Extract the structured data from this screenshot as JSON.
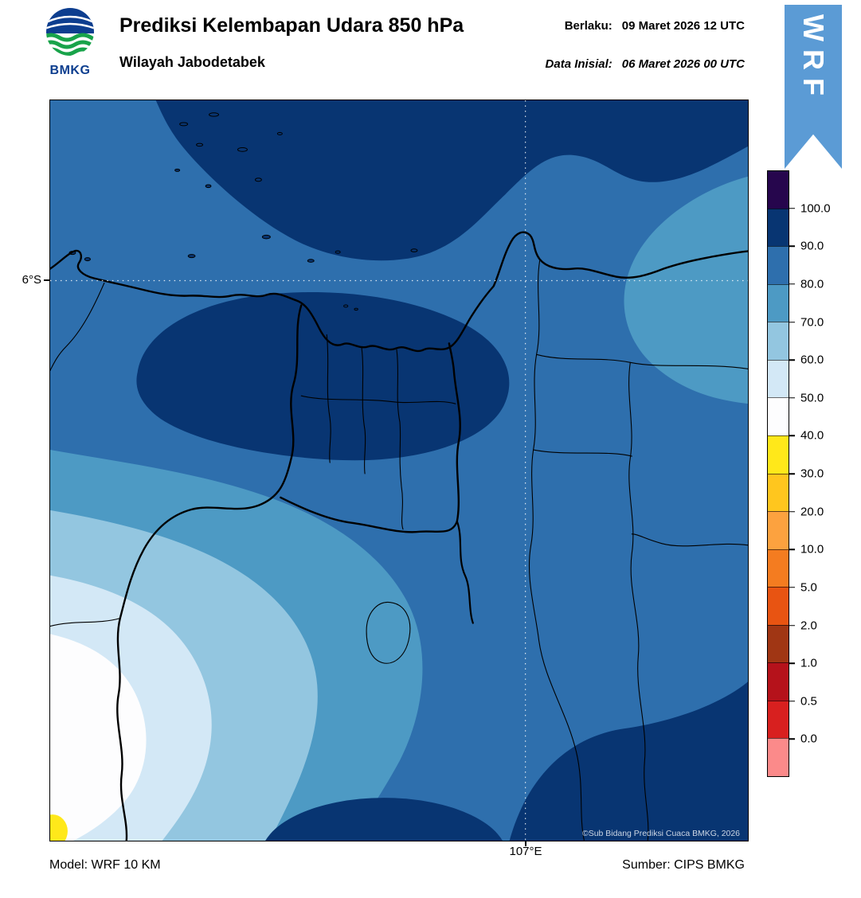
{
  "header": {
    "title": "Prediksi Kelembapan Udara 850 hPa",
    "subtitle": "Wilayah Jabodetabek",
    "valid_label": "Berlaku:",
    "valid_value": "09 Maret 2026 12 UTC",
    "initial_label": "Data Inisial:",
    "initial_value": "06 Maret 2026 00 UTC",
    "logo_text": "BMKG",
    "ribbon_label": "WRF",
    "ribbon_color": "#5b9bd5"
  },
  "map": {
    "lat_tick": "6°S",
    "lon_tick": "107°E",
    "copyright": "©Sub Bidang Prediksi Cuaca BMKG, 2026"
  },
  "footer": {
    "model": "Model: WRF 10 KM",
    "source": "Sumber: CIPS BMKG"
  },
  "colorbar": {
    "ticks": [
      "100.0",
      "90.0",
      "80.0",
      "70.0",
      "60.0",
      "50.0",
      "40.0",
      "30.0",
      "20.0",
      "10.0",
      "5.0",
      "2.0",
      "1.0",
      "0.5",
      "0.0"
    ],
    "colors": [
      "#26064d",
      "#083572",
      "#2e6fad",
      "#4d9ac4",
      "#93c6e0",
      "#d3e8f6",
      "#fdfdfe",
      "#ffe81a",
      "#ffc61e",
      "#fca23f",
      "#f47c20",
      "#e85412",
      "#a03614",
      "#b5121b",
      "#d8201f",
      "#fb8a8a"
    ]
  },
  "chart_data": {
    "type": "heatmap",
    "title": "Prediksi Kelembapan Udara 850 hPa",
    "region": "Wilayah Jabodetabek",
    "colorbar_ticks": [
      100.0,
      90.0,
      80.0,
      70.0,
      60.0,
      50.0,
      40.0,
      30.0,
      20.0,
      10.0,
      5.0,
      2.0,
      1.0,
      0.5,
      0.0
    ],
    "x_tick": "107°E",
    "y_tick": "6°S",
    "readings": [
      {
        "area": "offshore north (Java Sea) and Jakarta coastal belt",
        "value_range": "90-100"
      },
      {
        "area": "most of the domain background",
        "value_range": "80-90"
      },
      {
        "area": "band along eastern edge",
        "value_range": "70-80"
      },
      {
        "area": "southwest quadrant concentric bands",
        "value_range": "40-70"
      },
      {
        "area": "small spot at bottom-left corner",
        "value_range": "30-40"
      },
      {
        "area": "south-central and southeast blobs",
        "value_range": "90-100"
      }
    ]
  }
}
